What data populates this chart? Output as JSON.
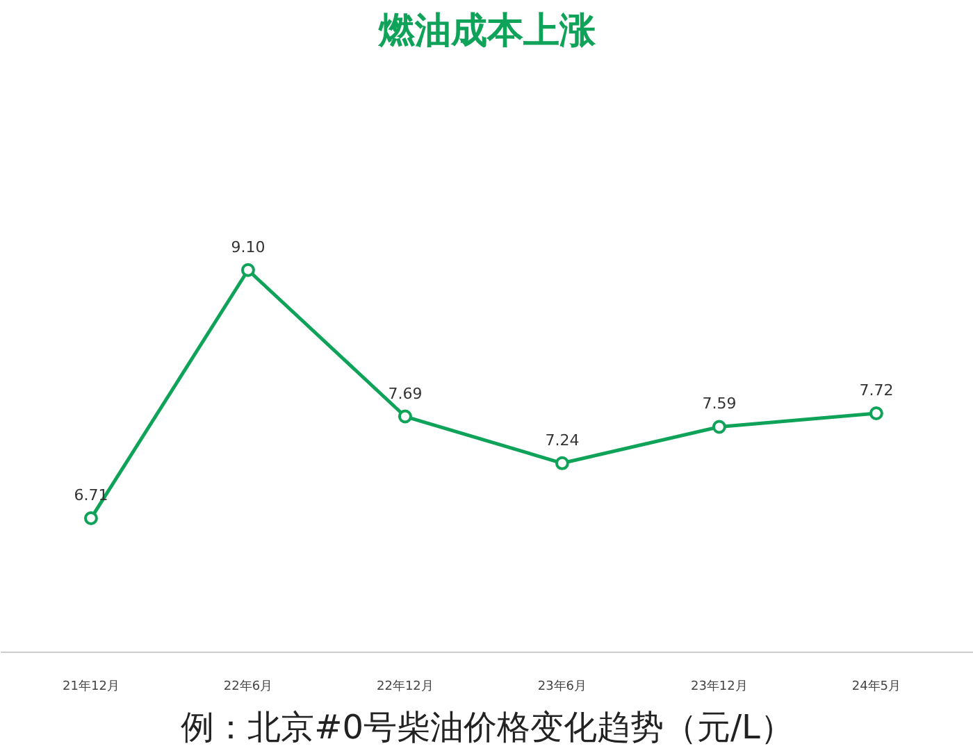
{
  "chart_data": {
    "type": "line",
    "title": "燃油成本上涨",
    "categories": [
      "21年12月",
      "22年6月",
      "22年12月",
      "23年6月",
      "23年12月",
      "24年5月"
    ],
    "series": [
      {
        "color": "#0fa35a",
        "values": [
          6.71,
          9.1,
          7.69,
          7.24,
          7.59,
          7.72
        ],
        "value_labels": [
          "6.71",
          "9.10",
          "7.69",
          "7.24",
          "7.59",
          "7.72"
        ]
      }
    ],
    "tick_labels": "x",
    "marker": "circle",
    "line_style": "solid",
    "annotations": [
      "例：北京#0号柴油价格变化趋势（元/L）"
    ]
  }
}
